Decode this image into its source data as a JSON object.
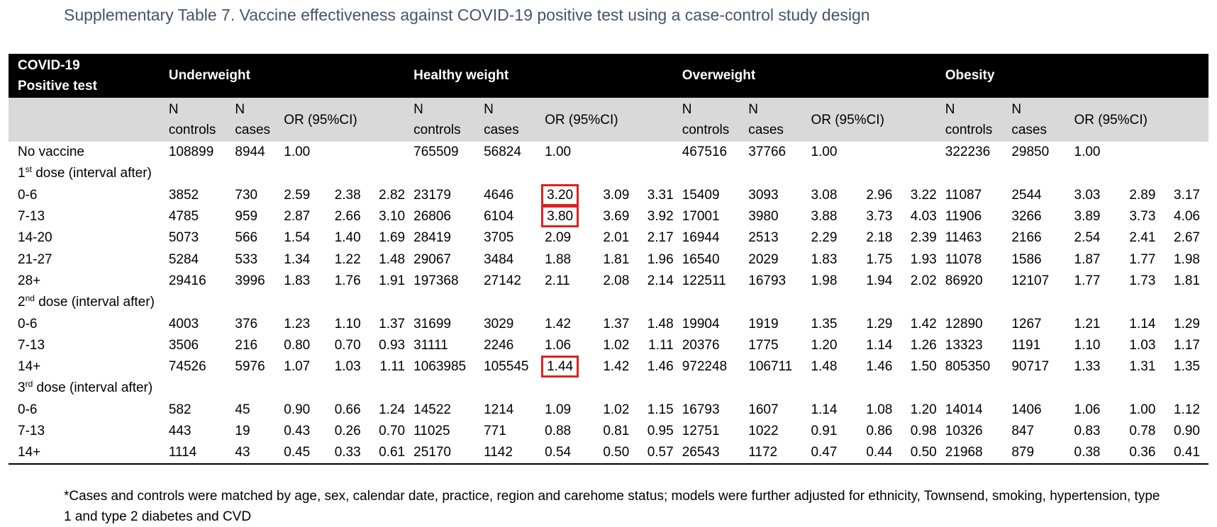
{
  "caption": "Supplementary Table 7. Vaccine effectiveness against COVID-19 positive test using a case-control study design",
  "header": {
    "first_line1": "COVID-19",
    "first_line2": "Positive test",
    "groups": [
      "Underweight",
      "Healthy weight",
      "Overweight",
      "Obesity"
    ],
    "n_controls_1": "N",
    "n_controls_2": "controls",
    "n_cases_1": "N",
    "n_cases_2": "cases",
    "or_label": "OR (95%CI)"
  },
  "no_vaccine": {
    "label": "No vaccine",
    "groups": [
      [
        "108899",
        "8944",
        "1.00"
      ],
      [
        "765509",
        "56824",
        "1.00"
      ],
      [
        "467516",
        "37766",
        "1.00"
      ],
      [
        "322236",
        "29850",
        "1.00"
      ]
    ]
  },
  "sections": [
    {
      "ordinal": "1",
      "suffix": "st",
      "rest": " dose (interval after)",
      "rows": [
        {
          "label": "0-6",
          "vals": [
            "3852",
            "730",
            "2.59",
            "2.38",
            "2.82",
            "23179",
            "4646",
            "3.20",
            "3.09",
            "3.31",
            "15409",
            "3093",
            "3.08",
            "2.96",
            "3.22",
            "11087",
            "2544",
            "3.03",
            "2.89",
            "3.17"
          ]
        },
        {
          "label": "7-13",
          "vals": [
            "4785",
            "959",
            "2.87",
            "2.66",
            "3.10",
            "26806",
            "6104",
            "3.80",
            "3.69",
            "3.92",
            "17001",
            "3980",
            "3.88",
            "3.73",
            "4.03",
            "11906",
            "3266",
            "3.89",
            "3.73",
            "4.06"
          ]
        },
        {
          "label": "14-20",
          "vals": [
            "5073",
            "566",
            "1.54",
            "1.40",
            "1.69",
            "28419",
            "3705",
            "2.09",
            "2.01",
            "2.17",
            "16944",
            "2513",
            "2.29",
            "2.18",
            "2.39",
            "11463",
            "2166",
            "2.54",
            "2.41",
            "2.67"
          ]
        },
        {
          "label": "21-27",
          "vals": [
            "5284",
            "533",
            "1.34",
            "1.22",
            "1.48",
            "29067",
            "3484",
            "1.88",
            "1.81",
            "1.96",
            "16540",
            "2029",
            "1.83",
            "1.75",
            "1.93",
            "11078",
            "1586",
            "1.87",
            "1.77",
            "1.98"
          ]
        },
        {
          "label": "28+",
          "vals": [
            "29416",
            "3996",
            "1.83",
            "1.76",
            "1.91",
            "197368",
            "27142",
            "2.11",
            "2.08",
            "2.14",
            "122511",
            "16793",
            "1.98",
            "1.94",
            "2.02",
            "86920",
            "12107",
            "1.77",
            "1.73",
            "1.81"
          ]
        }
      ]
    },
    {
      "ordinal": "2",
      "suffix": "nd",
      "rest": " dose (interval after)",
      "rows": [
        {
          "label": "0-6",
          "vals": [
            "4003",
            "376",
            "1.23",
            "1.10",
            "1.37",
            "31699",
            "3029",
            "1.42",
            "1.37",
            "1.48",
            "19904",
            "1919",
            "1.35",
            "1.29",
            "1.42",
            "12890",
            "1267",
            "1.21",
            "1.14",
            "1.29"
          ]
        },
        {
          "label": "7-13",
          "vals": [
            "3506",
            "216",
            "0.80",
            "0.70",
            "0.93",
            "31111",
            "2246",
            "1.06",
            "1.02",
            "1.11",
            "20376",
            "1775",
            "1.20",
            "1.14",
            "1.26",
            "13323",
            "1191",
            "1.10",
            "1.03",
            "1.17"
          ]
        },
        {
          "label": "14+",
          "vals": [
            "74526",
            "5976",
            "1.07",
            "1.03",
            "1.11",
            "1063985",
            "105545",
            "1.44",
            "1.42",
            "1.46",
            "972248",
            "106711",
            "1.48",
            "1.46",
            "1.50",
            "805350",
            "90717",
            "1.33",
            "1.31",
            "1.35"
          ]
        }
      ]
    },
    {
      "ordinal": "3",
      "suffix": "rd",
      "rest": " dose (interval after)",
      "rows": [
        {
          "label": "0-6",
          "vals": [
            "582",
            "45",
            "0.90",
            "0.66",
            "1.24",
            "14522",
            "1214",
            "1.09",
            "1.02",
            "1.15",
            "16793",
            "1607",
            "1.14",
            "1.08",
            "1.20",
            "14014",
            "1406",
            "1.06",
            "1.00",
            "1.12"
          ]
        },
        {
          "label": "7-13",
          "vals": [
            "443",
            "19",
            "0.43",
            "0.26",
            "0.70",
            "11025",
            "771",
            "0.88",
            "0.81",
            "0.95",
            "12751",
            "1022",
            "0.91",
            "0.86",
            "0.98",
            "10326",
            "847",
            "0.83",
            "0.78",
            "0.90"
          ]
        },
        {
          "label": "14+",
          "vals": [
            "1114",
            "43",
            "0.45",
            "0.33",
            "0.61",
            "25170",
            "1142",
            "0.54",
            "0.50",
            "0.57",
            "26543",
            "1172",
            "0.47",
            "0.44",
            "0.50",
            "21968",
            "879",
            "0.38",
            "0.36",
            "0.41"
          ]
        }
      ]
    }
  ],
  "highlighted_cells": [
    "1st dose 0-6 Healthy weight OR",
    "1st dose 7-13 Healthy weight OR",
    "2nd dose 14+ Healthy weight OR"
  ],
  "highlight_color": "#e02020",
  "note": "*Cases and controls were matched by age, sex, calendar date, practice, region and carehome status; models were further adjusted for ethnicity, Townsend, smoking, hypertension, type 1 and type 2 diabetes and CVD"
}
